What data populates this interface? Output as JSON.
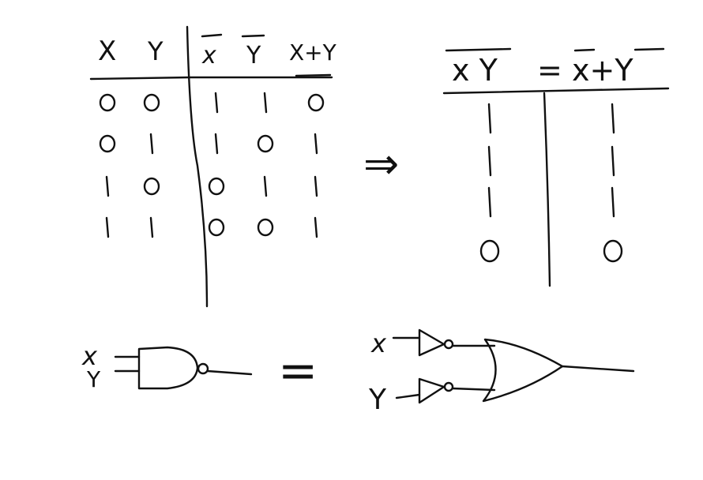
{
  "colors": {
    "ink": "#111111",
    "background": "#ffffff"
  },
  "left_table": {
    "headers": [
      "X",
      "Y",
      "x",
      "Y",
      "X+Y"
    ],
    "rows": [
      [
        "0",
        "0",
        "1",
        "1",
        "0"
      ],
      [
        "0",
        "1",
        "1",
        "0",
        "1"
      ],
      [
        "1",
        "0",
        "0",
        "1",
        "1"
      ],
      [
        "1",
        "1",
        "0",
        "0",
        "1"
      ]
    ]
  },
  "implies": "⇒",
  "right_table": {
    "lhs": "x Y",
    "equals": "=",
    "rhs": "x+Y",
    "rows": [
      [
        "1",
        "1"
      ],
      [
        "1",
        "1"
      ],
      [
        "1",
        "1"
      ],
      [
        "0",
        "0"
      ]
    ]
  },
  "bottom": {
    "nand_inputs": [
      "x",
      "Y"
    ],
    "equals": "=",
    "or_inputs": [
      "x",
      "Y"
    ]
  }
}
